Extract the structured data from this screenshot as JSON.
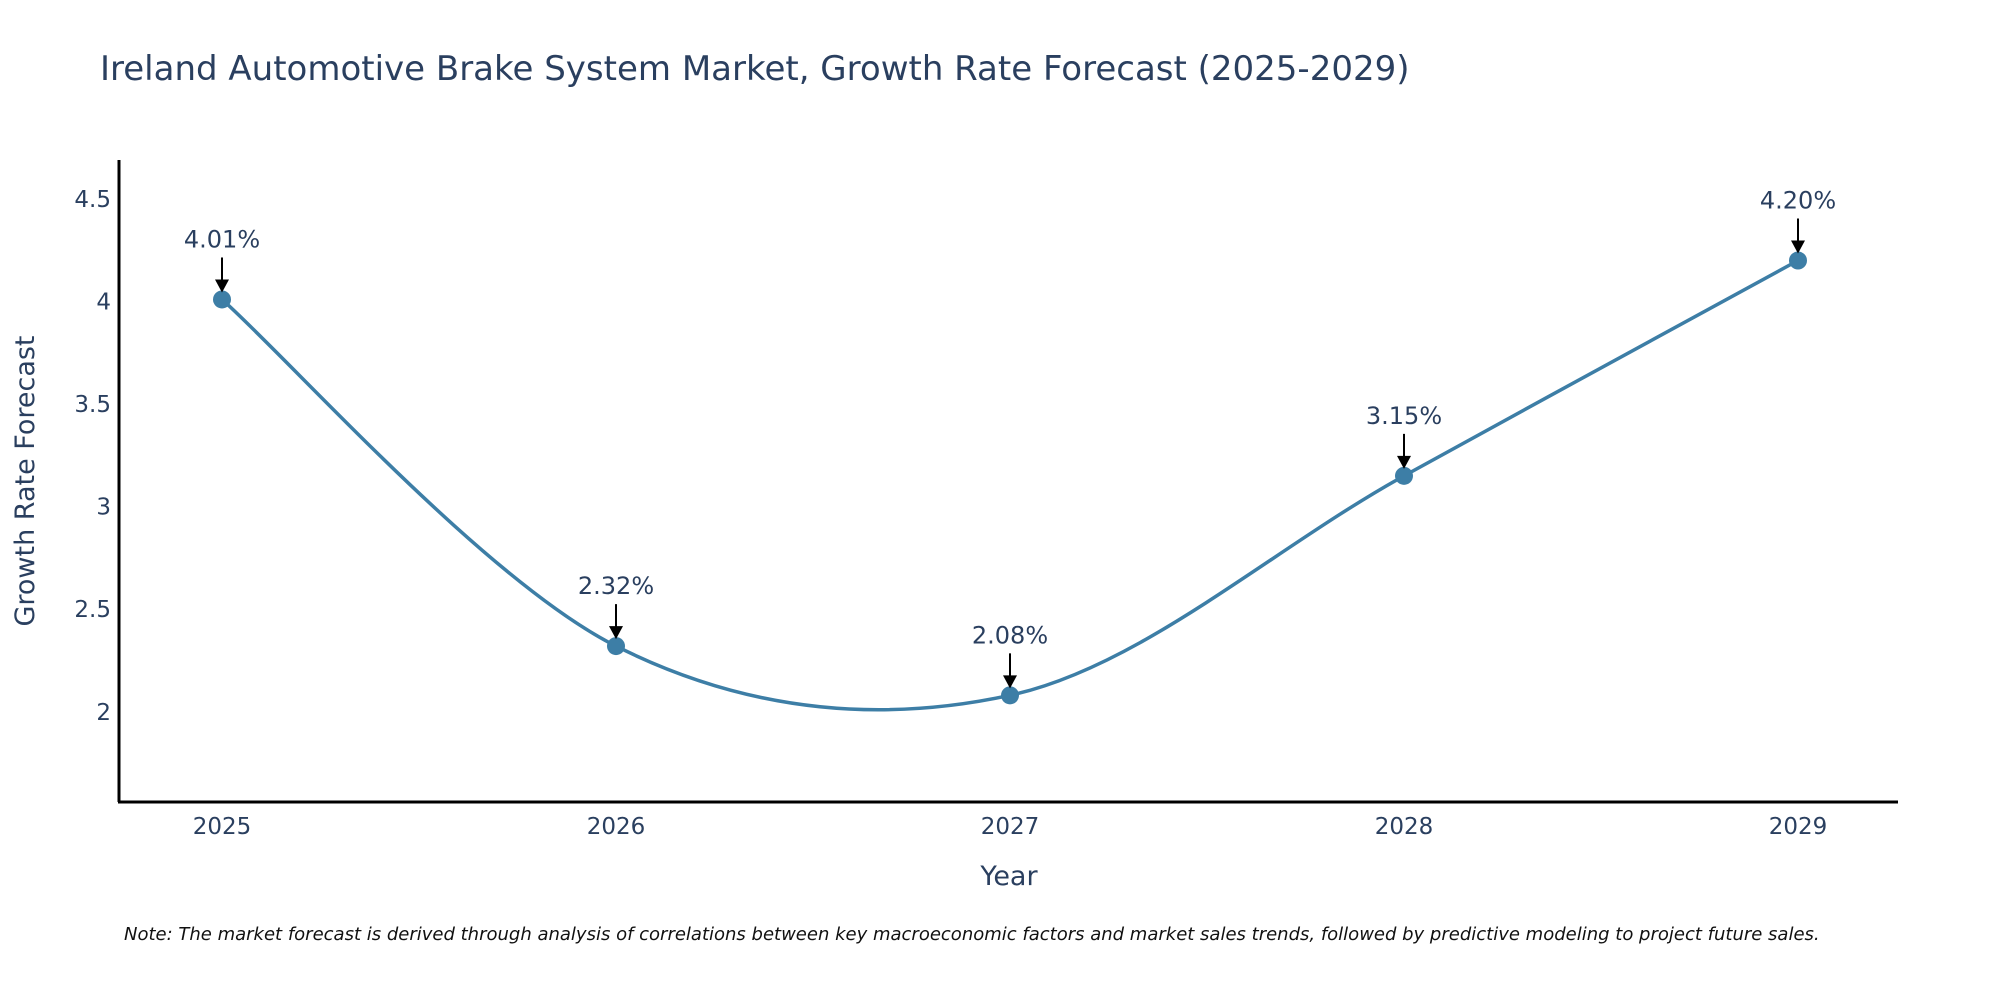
{
  "chart_data": {
    "type": "line",
    "title": "Ireland Automotive Brake System Market, Growth Rate Forecast (2025-2029)",
    "xlabel": "Year",
    "ylabel": "Growth Rate Forecast",
    "categories": [
      "2025",
      "2026",
      "2027",
      "2028",
      "2029"
    ],
    "series": [
      {
        "name": "Growth Rate Forecast",
        "values": [
          4.01,
          2.32,
          2.08,
          3.15,
          4.2
        ],
        "labels": [
          "4.01%",
          "2.32%",
          "2.08%",
          "3.15%",
          "4.20%"
        ]
      }
    ],
    "ylim": [
      1.56,
      4.69
    ],
    "yticks": [
      2,
      2.5,
      3,
      3.5,
      4,
      4.5
    ],
    "ytick_labels": [
      "2",
      "2.5",
      "3",
      "3.5",
      "4",
      "4.5"
    ],
    "line_shape": "spline",
    "grid": false,
    "line_color": "#3d7ea6",
    "marker_color": "#3d7ea6",
    "note": "Note: The market forecast is derived through analysis of correlations between key macroeconomic factors and market sales trends, followed by predictive modeling to project future sales."
  }
}
